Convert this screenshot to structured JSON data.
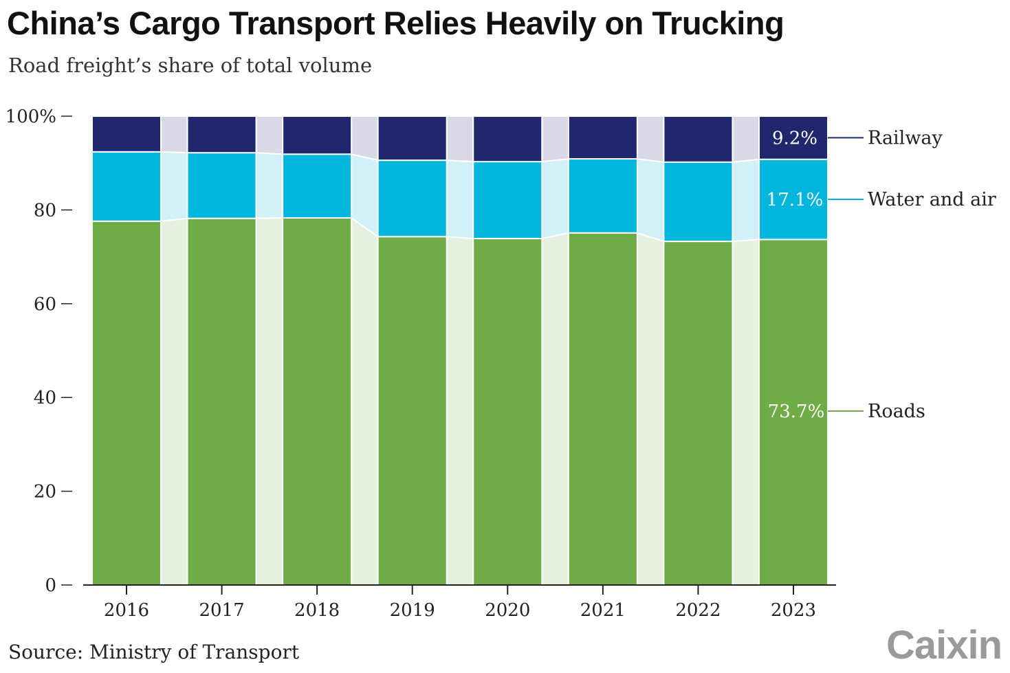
{
  "title": "China’s Cargo Transport Relies Heavily on Trucking",
  "subtitle": "Road freight’s share of total volume",
  "source": "Source: Ministry of Transport",
  "logo": "Caixin",
  "chart_data": {
    "type": "bar",
    "stacked": true,
    "categories": [
      "2016",
      "2017",
      "2018",
      "2019",
      "2020",
      "2021",
      "2022",
      "2023"
    ],
    "ylim": [
      0,
      100
    ],
    "yticks": [
      0,
      20,
      40,
      60,
      80,
      100
    ],
    "ytick_labels": [
      "0",
      "20",
      "40",
      "60",
      "80",
      "100%"
    ],
    "series": [
      {
        "name": "Roads",
        "color": "#6fab46",
        "connector_color": "#e6f0df",
        "values": [
          77.6,
          78.2,
          78.3,
          74.3,
          73.9,
          75.1,
          73.3,
          73.7
        ],
        "last_label": "73.7%"
      },
      {
        "name": "Water and air",
        "color": "#00b6dd",
        "connector_color": "#d2f0f8",
        "values": [
          14.8,
          14.0,
          13.6,
          16.3,
          16.4,
          15.8,
          16.9,
          17.1
        ],
        "last_label": "17.1%"
      },
      {
        "name": "Railway",
        "color": "#1f286e",
        "connector_color": "#d8d8e6",
        "values": [
          7.6,
          7.8,
          8.1,
          9.4,
          9.7,
          9.1,
          9.8,
          9.2
        ],
        "last_label": "9.2%"
      }
    ],
    "legend": "right, direct labels",
    "grid": false
  }
}
